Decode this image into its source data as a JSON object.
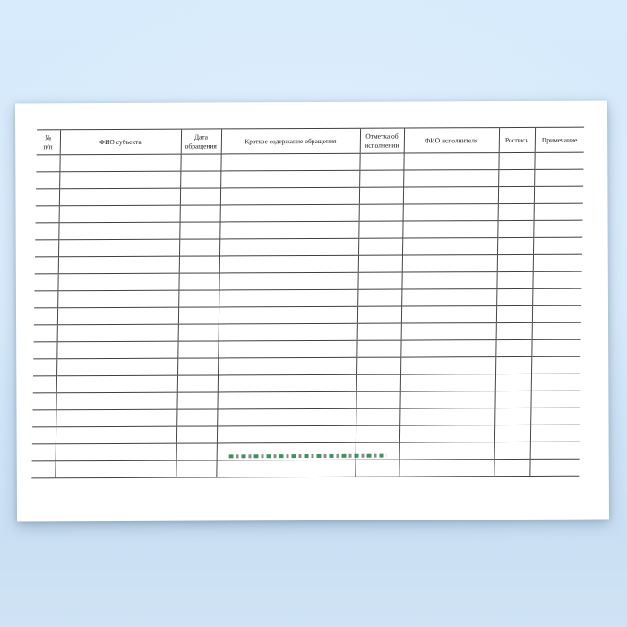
{
  "table": {
    "columns": [
      "№\nп/п",
      "ФИО субъекта",
      "Дата\nобращения",
      "Краткое содержание обращения",
      "Отметка об\nисполнении",
      "ФИО исполнителя",
      "Роспись",
      "Примечание"
    ],
    "row_count": 19,
    "line_color": "#3f3f3f"
  },
  "watermark": {
    "style": "tiny illegible dashed text",
    "color_primary": "#237a46",
    "color_secondary": "#6f7a74"
  },
  "background": {
    "top_color": "#d7ebfc",
    "bottom_color": "#cadff3"
  },
  "page": {
    "color": "#ffffff"
  }
}
